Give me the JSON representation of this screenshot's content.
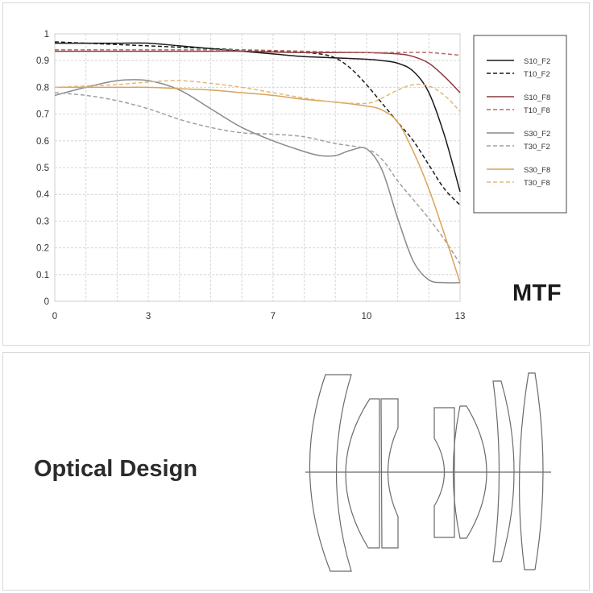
{
  "mtf_label": "MTF",
  "optics_label": "Optical Design",
  "chart_data": {
    "type": "line",
    "title": "",
    "xlabel": "",
    "ylabel": "",
    "xlim": [
      0,
      13
    ],
    "ylim": [
      0,
      1
    ],
    "x_ticks": [
      0,
      3,
      7,
      10,
      13
    ],
    "y_ticks": [
      0,
      0.1,
      0.2,
      0.3,
      0.4,
      0.5,
      0.6,
      0.7,
      0.8,
      0.9,
      1
    ],
    "grid": true,
    "legend_position": "right",
    "series": [
      {
        "name": "S10_F2",
        "color": "#1a1a1a",
        "dashed": false,
        "x": [
          0,
          1,
          2,
          3,
          4,
          5,
          6,
          7,
          8,
          9,
          10,
          10.5,
          11,
          11.5,
          12,
          12.5,
          13
        ],
        "y": [
          0.965,
          0.965,
          0.965,
          0.965,
          0.955,
          0.945,
          0.935,
          0.925,
          0.915,
          0.91,
          0.905,
          0.9,
          0.89,
          0.86,
          0.78,
          0.62,
          0.41
        ]
      },
      {
        "name": "T10_F2",
        "color": "#1a1a1a",
        "dashed": true,
        "x": [
          0,
          1,
          2,
          3,
          4,
          5,
          6,
          7,
          8,
          8.5,
          9,
          9.5,
          10,
          10.5,
          11,
          11.5,
          12,
          12.5,
          13
        ],
        "y": [
          0.97,
          0.965,
          0.96,
          0.955,
          0.95,
          0.945,
          0.94,
          0.935,
          0.93,
          0.925,
          0.91,
          0.87,
          0.81,
          0.74,
          0.67,
          0.6,
          0.51,
          0.42,
          0.36
        ]
      },
      {
        "name": "S10_F8",
        "color": "#8b3a3e",
        "dashed": false,
        "x": [
          0,
          1,
          2,
          3,
          4,
          5,
          6,
          7,
          8,
          9,
          10,
          11,
          11.5,
          12,
          12.5,
          13
        ],
        "y": [
          0.935,
          0.935,
          0.935,
          0.935,
          0.935,
          0.935,
          0.935,
          0.932,
          0.93,
          0.93,
          0.93,
          0.925,
          0.915,
          0.89,
          0.84,
          0.78
        ]
      },
      {
        "name": "T10_F8",
        "color": "#b86a6a",
        "dashed": true,
        "x": [
          0,
          1,
          2,
          3,
          4,
          5,
          6,
          7,
          8,
          9,
          10,
          11,
          12,
          13
        ],
        "y": [
          0.94,
          0.94,
          0.94,
          0.94,
          0.94,
          0.94,
          0.94,
          0.938,
          0.935,
          0.932,
          0.93,
          0.93,
          0.93,
          0.92
        ]
      },
      {
        "name": "S30_F2",
        "color": "#8a8a8a",
        "dashed": false,
        "x": [
          0,
          1,
          2,
          3,
          4,
          5,
          6,
          7,
          8,
          8.5,
          9,
          9.5,
          10,
          10.5,
          11,
          11.5,
          12,
          12.5,
          13
        ],
        "y": [
          0.77,
          0.8,
          0.825,
          0.825,
          0.79,
          0.72,
          0.65,
          0.6,
          0.56,
          0.545,
          0.545,
          0.565,
          0.57,
          0.49,
          0.31,
          0.15,
          0.08,
          0.07,
          0.07
        ]
      },
      {
        "name": "T30_F2",
        "color": "#a0a0a0",
        "dashed": true,
        "x": [
          0,
          1,
          2,
          3,
          4,
          5,
          6,
          7,
          8,
          9,
          10,
          10.5,
          11,
          11.5,
          12,
          12.5,
          13
        ],
        "y": [
          0.78,
          0.77,
          0.75,
          0.72,
          0.68,
          0.65,
          0.63,
          0.625,
          0.615,
          0.59,
          0.57,
          0.53,
          0.45,
          0.38,
          0.31,
          0.23,
          0.14
        ]
      },
      {
        "name": "S30_F8",
        "color": "#d9a35a",
        "dashed": false,
        "x": [
          0,
          1,
          2,
          3,
          4,
          5,
          6,
          7,
          8,
          9,
          10,
          10.5,
          11,
          11.5,
          12,
          12.5,
          13
        ],
        "y": [
          0.8,
          0.8,
          0.8,
          0.8,
          0.795,
          0.79,
          0.78,
          0.77,
          0.755,
          0.745,
          0.73,
          0.715,
          0.67,
          0.56,
          0.42,
          0.25,
          0.07
        ]
      },
      {
        "name": "T30_F8",
        "color": "#e0b878",
        "dashed": true,
        "x": [
          0,
          1,
          2,
          3,
          4,
          5,
          6,
          7,
          8,
          9,
          10,
          10.5,
          11,
          11.5,
          12,
          12.5,
          13
        ],
        "y": [
          0.8,
          0.805,
          0.81,
          0.82,
          0.825,
          0.815,
          0.8,
          0.78,
          0.76,
          0.745,
          0.74,
          0.76,
          0.79,
          0.81,
          0.805,
          0.77,
          0.71
        ]
      }
    ]
  }
}
